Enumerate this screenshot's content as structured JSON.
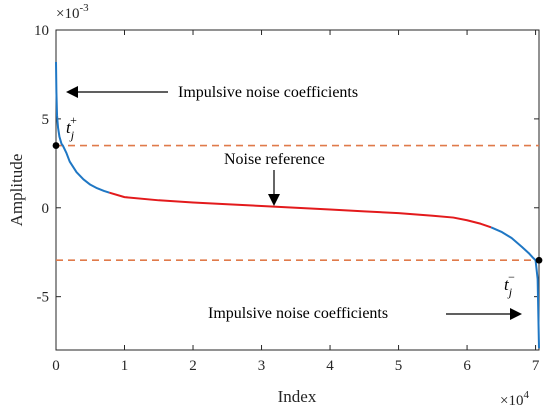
{
  "chart_data": {
    "type": "line",
    "xlabel": "Index",
    "ylabel": "Amplitude",
    "x_multiplier_label": "×10",
    "x_multiplier_exp": "4",
    "y_multiplier_label": "×10",
    "y_multiplier_exp": "-3",
    "xlim": [
      0,
      70500
    ],
    "ylim": [
      -8.0,
      10.0
    ],
    "x_ticks": [
      0,
      10000,
      20000,
      30000,
      40000,
      50000,
      60000,
      70000
    ],
    "x_tick_labels": [
      "0",
      "1",
      "2",
      "3",
      "4",
      "5",
      "6",
      "7"
    ],
    "y_ticks": [
      -5,
      0,
      5,
      10
    ],
    "y_tick_labels": [
      "-5",
      "0",
      "5",
      "10"
    ],
    "y_units_note": "y values in units of 1e-3",
    "thresholds": {
      "upper": 3.5,
      "lower": -2.95,
      "color": "#e07a4a"
    },
    "series": [
      {
        "segment": "upper impulsive",
        "color": "#1f77c4",
        "x": [
          0,
          60,
          150,
          300,
          500,
          800,
          1000,
          1500,
          2000,
          3000,
          4000,
          5000,
          6000,
          7000,
          7800
        ],
        "y": [
          8.2,
          6.5,
          5.2,
          4.5,
          4.0,
          3.6,
          3.5,
          3.1,
          2.6,
          2.0,
          1.6,
          1.3,
          1.1,
          0.95,
          0.85
        ]
      },
      {
        "segment": "noise reference",
        "color": "#e31a1c",
        "x": [
          7800,
          10000,
          15000,
          20000,
          25000,
          30000,
          35000,
          40000,
          45000,
          50000,
          55000,
          58000,
          60000,
          62000,
          63500
        ],
        "y": [
          0.85,
          0.6,
          0.42,
          0.3,
          0.2,
          0.1,
          0.0,
          -0.1,
          -0.2,
          -0.3,
          -0.45,
          -0.55,
          -0.7,
          -0.9,
          -1.1
        ]
      },
      {
        "segment": "lower impulsive",
        "color": "#1f77c4",
        "x": [
          63500,
          65000,
          66500,
          68000,
          69000,
          69600,
          70000,
          70300,
          70500
        ],
        "y": [
          -1.1,
          -1.35,
          -1.7,
          -2.2,
          -2.55,
          -2.8,
          -2.95,
          -4.0,
          -7.9
        ]
      }
    ],
    "points": [
      {
        "name": "t_j_plus",
        "x": 0,
        "y": 3.5
      },
      {
        "name": "t_j_minus",
        "x": 70500,
        "y": -2.95
      }
    ],
    "annotations": {
      "upper_text": "Impulsive noise coefficients",
      "noise_text": "Noise reference",
      "lower_text": "Impulsive noise coefficients",
      "t_plus_base": "t",
      "t_plus_sub": "j",
      "t_plus_sup": "+",
      "t_minus_base": "t",
      "t_minus_sub": "j",
      "t_minus_sup": "−"
    }
  }
}
